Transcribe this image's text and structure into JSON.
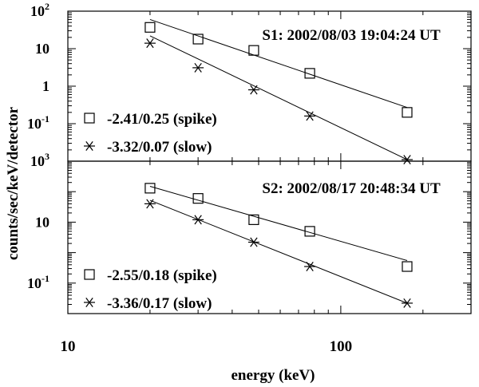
{
  "chart_data": [
    {
      "type": "scatter",
      "panel_title": "S1: 2002/08/03 19:04:24 UT",
      "x_scale": "log",
      "y_scale": "log",
      "xlim": [
        10,
        300
      ],
      "ylim": [
        0.01,
        100
      ],
      "grid": false,
      "legend_position": "bottom-left",
      "y_ticks": [
        {
          "value": 100,
          "base": "10",
          "exp": "2"
        },
        {
          "value": 10,
          "base": "10",
          "exp": ""
        },
        {
          "value": 1,
          "base": "1",
          "exp": ""
        },
        {
          "value": 0.1,
          "base": "10",
          "exp": "-1"
        }
      ],
      "series": [
        {
          "name": "-2.41/0.25 (spike)",
          "marker": "square",
          "x": [
            20,
            30,
            48,
            77,
            175
          ],
          "y": [
            37,
            18,
            9,
            2.2,
            0.2
          ],
          "fit": {
            "x": [
              20,
              175
            ],
            "y": [
              60,
              0.27
            ]
          }
        },
        {
          "name": "-3.32/0.07 (slow)",
          "marker": "asterisk",
          "x": [
            20,
            30,
            48,
            77,
            175
          ],
          "y": [
            14,
            3.1,
            0.8,
            0.16,
            0.011
          ],
          "fit": {
            "x": [
              20,
              175
            ],
            "y": [
              22,
              0.011
            ]
          }
        }
      ]
    },
    {
      "type": "scatter",
      "panel_title": "S2: 2002/08/17 20:48:34 UT",
      "x_scale": "log",
      "y_scale": "log",
      "xlim": [
        10,
        300
      ],
      "ylim": [
        0.01,
        1000
      ],
      "grid": false,
      "legend_position": "bottom-left",
      "y_ticks": [
        {
          "value": 1000,
          "base": "10",
          "exp": "3"
        },
        {
          "value": 10,
          "base": "10",
          "exp": ""
        },
        {
          "value": 0.1,
          "base": "10",
          "exp": "-1"
        }
      ],
      "series": [
        {
          "name": "-2.55/0.18 (spike)",
          "marker": "square",
          "x": [
            20,
            30,
            48,
            77,
            175
          ],
          "y": [
            130,
            60,
            12,
            5,
            0.35
          ],
          "fit": {
            "x": [
              20,
              175
            ],
            "y": [
              150,
              0.55
            ]
          }
        },
        {
          "name": "-3.36/0.17 (slow)",
          "marker": "asterisk",
          "x": [
            20,
            30,
            48,
            77,
            175
          ],
          "y": [
            40,
            12,
            2.2,
            0.35,
            0.022
          ],
          "fit": {
            "x": [
              20,
              175
            ],
            "y": [
              52,
              0.022
            ]
          }
        }
      ]
    }
  ],
  "x_ticks": [
    {
      "value": 10,
      "label": "10"
    },
    {
      "value": 100,
      "label": "100"
    }
  ],
  "xlabel": "energy (keV)",
  "ylabel": "counts/sec/keV/detector",
  "colors": {
    "ink": "#000000",
    "background": "#ffffff"
  }
}
